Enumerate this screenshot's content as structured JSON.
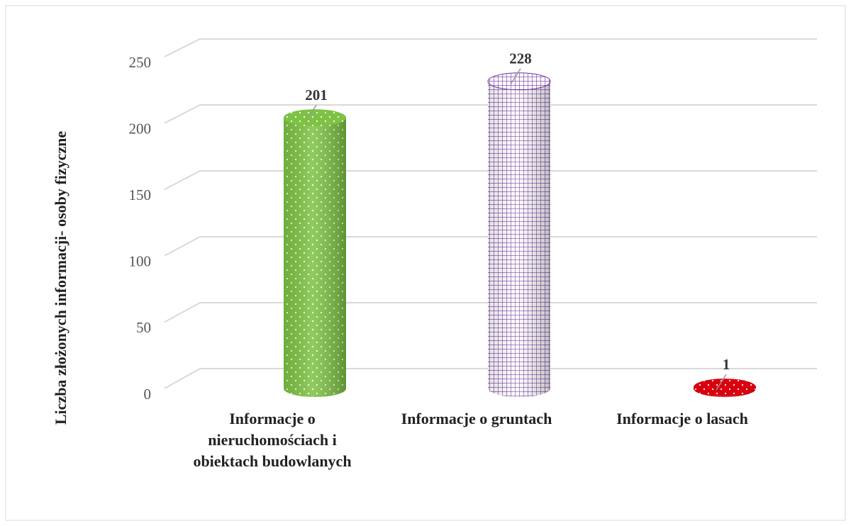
{
  "chart_data": {
    "type": "bar3d-cylinder",
    "y_label": "Liczba złożonych informacji-  osoby fizyczne",
    "categories": [
      "Informacje o nieruchomościach i obiektach budowlanych",
      "Informacje o gruntach",
      "Informacje o lasach"
    ],
    "values": [
      201,
      228,
      1
    ],
    "colors": [
      "#7dc242",
      "#7030a0",
      "#d9000f"
    ],
    "ylim": [
      0,
      250
    ],
    "yticks": [
      0,
      50,
      100,
      150,
      200,
      250
    ],
    "grid": true
  }
}
